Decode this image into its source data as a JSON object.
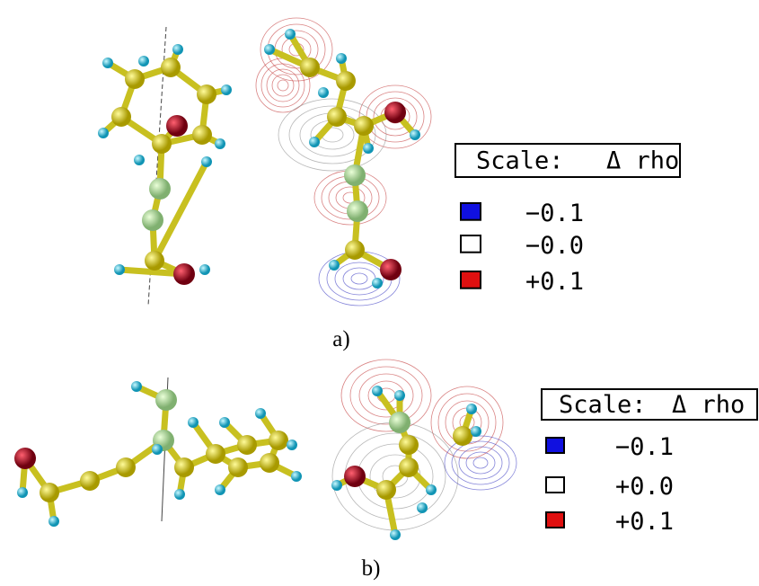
{
  "panels": [
    {
      "caption": "a)",
      "scale_title": "Scale:",
      "scale_symbol": "Δ rho",
      "legend": [
        {
          "label": "−0.1",
          "color": "#1010e0"
        },
        {
          "label": "−0.0",
          "color": "#ffffff"
        },
        {
          "label": "+0.1",
          "color": "#e01010"
        }
      ]
    },
    {
      "caption": "b)",
      "scale_title": "Scale:",
      "scale_symbol": "Δ rho",
      "legend": [
        {
          "label": "−0.1",
          "color": "#1010e0"
        },
        {
          "label": "+0.0",
          "color": "#ffffff"
        },
        {
          "label": "+0.1",
          "color": "#e01010"
        }
      ]
    }
  ]
}
